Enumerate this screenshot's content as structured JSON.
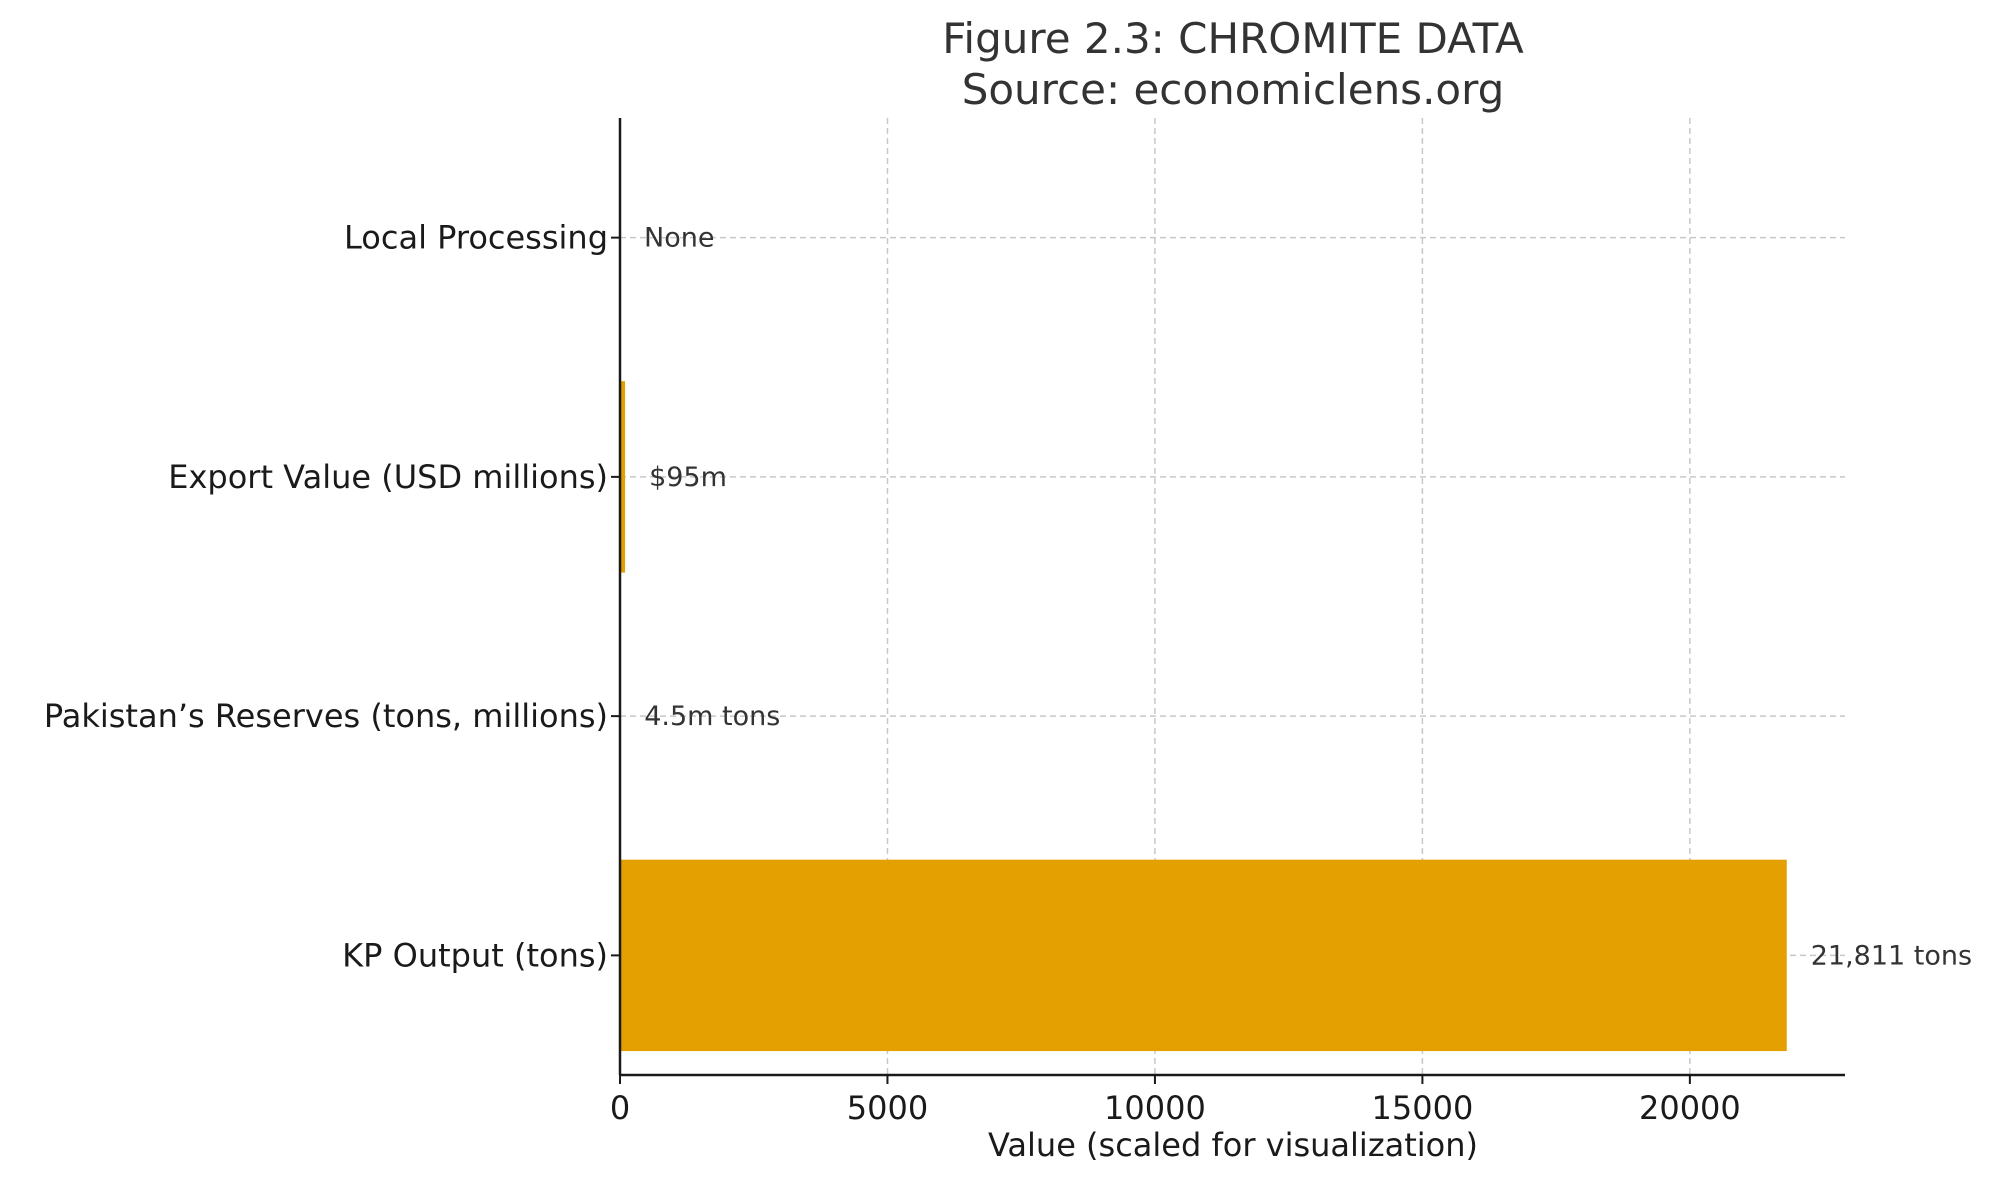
{
  "chart_data": {
    "type": "bar",
    "orientation": "horizontal",
    "title": "Figure 2.3: CHROMITE DATA",
    "subtitle": "Source: economiclens.org",
    "xlabel": "Value (scaled for visualization)",
    "ylabel": "",
    "xlim": [
      0,
      22900
    ],
    "xticks": [
      0,
      5000,
      10000,
      15000,
      20000
    ],
    "grid": true,
    "bar_color": "#E3A000",
    "categories": [
      "KP Output (tons)",
      "Pakistan’s Reserves (tons, millions)",
      "Export Value (USD millions)",
      "Local Processing"
    ],
    "values": [
      21811,
      4.5,
      95,
      0
    ],
    "data_labels": [
      "21,811 tons",
      "4.5m tons",
      "$95m",
      "None"
    ]
  }
}
